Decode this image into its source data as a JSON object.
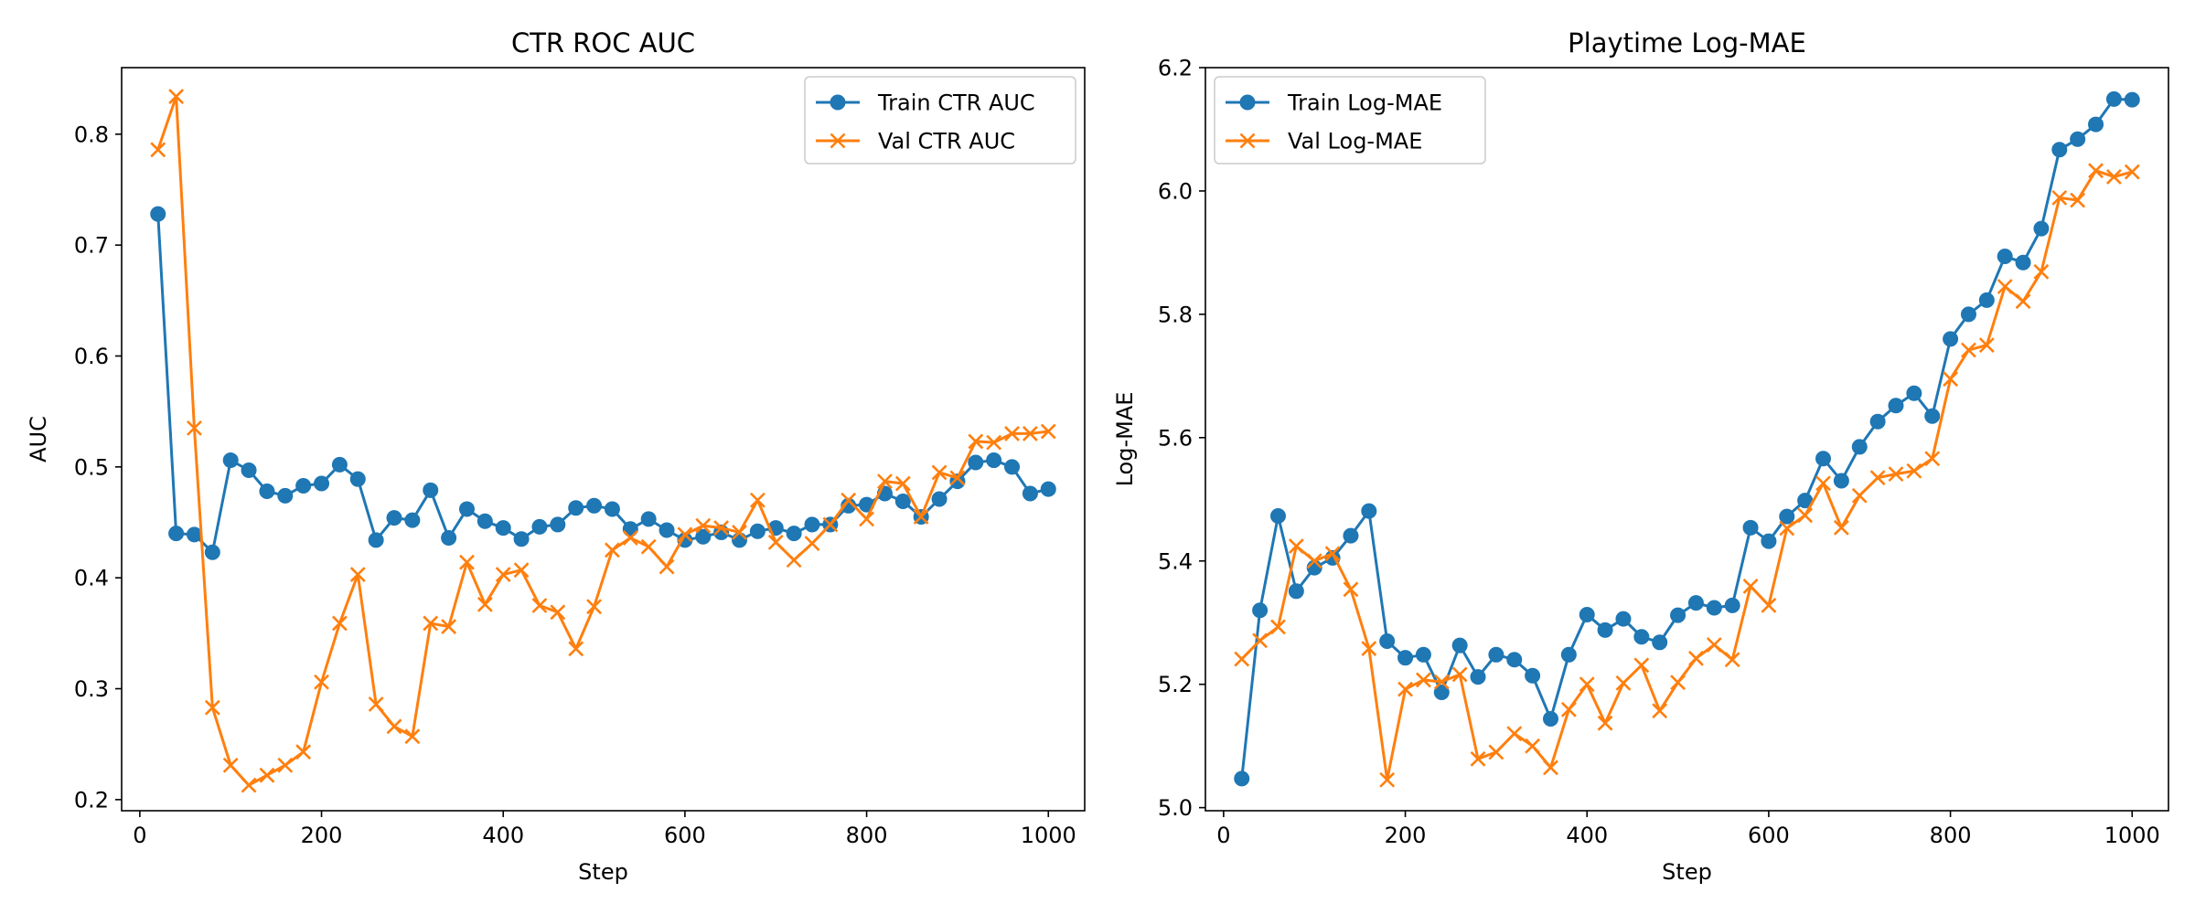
{
  "chart_data": [
    {
      "type": "line",
      "title": "CTR ROC AUC",
      "xlabel": "Step",
      "ylabel": "AUC",
      "xlim": [
        -20,
        1040
      ],
      "ylim": [
        0.19,
        0.86
      ],
      "xticks": [
        0,
        200,
        400,
        600,
        800,
        1000
      ],
      "yticks": [
        0.2,
        0.3,
        0.4,
        0.5,
        0.6,
        0.7,
        0.8
      ],
      "ytick_decimals": 1,
      "legend_position": "upper right",
      "grid": false,
      "x": [
        20,
        40,
        60,
        80,
        100,
        120,
        140,
        160,
        180,
        200,
        220,
        240,
        260,
        280,
        300,
        320,
        340,
        360,
        380,
        400,
        420,
        440,
        460,
        480,
        500,
        520,
        540,
        560,
        580,
        600,
        620,
        640,
        660,
        680,
        700,
        720,
        740,
        760,
        780,
        800,
        820,
        840,
        860,
        880,
        900,
        920,
        940,
        960,
        980,
        1000
      ],
      "series": [
        {
          "name": "Train CTR AUC",
          "color": "#1f77b4",
          "marker": "circle",
          "values": [
            0.728,
            0.44,
            0.439,
            0.423,
            0.506,
            0.497,
            0.478,
            0.474,
            0.483,
            0.485,
            0.502,
            0.489,
            0.434,
            0.454,
            0.452,
            0.479,
            0.436,
            0.462,
            0.451,
            0.445,
            0.435,
            0.446,
            0.448,
            0.463,
            0.465,
            0.462,
            0.444,
            0.453,
            0.443,
            0.434,
            0.437,
            0.441,
            0.434,
            0.442,
            0.445,
            0.44,
            0.448,
            0.448,
            0.465,
            0.466,
            0.476,
            0.469,
            0.455,
            0.471,
            0.487,
            0.504,
            0.506,
            0.5,
            0.476,
            0.48
          ]
        },
        {
          "name": "Val CTR AUC",
          "color": "#ff7f0e",
          "marker": "x",
          "values": [
            0.786,
            0.834,
            0.535,
            0.283,
            0.231,
            0.213,
            0.222,
            0.231,
            0.243,
            0.306,
            0.359,
            0.403,
            0.286,
            0.266,
            0.257,
            0.359,
            0.356,
            0.414,
            0.376,
            0.403,
            0.407,
            0.375,
            0.369,
            0.336,
            0.374,
            0.425,
            0.436,
            0.428,
            0.41,
            0.439,
            0.447,
            0.445,
            0.441,
            0.47,
            0.432,
            0.416,
            0.431,
            0.448,
            0.47,
            0.453,
            0.487,
            0.485,
            0.455,
            0.495,
            0.49,
            0.523,
            0.522,
            0.53,
            0.53,
            0.532
          ]
        }
      ]
    },
    {
      "type": "line",
      "title": "Playtime Log-MAE",
      "xlabel": "Step",
      "ylabel": "Log-MAE",
      "xlim": [
        -20,
        1040
      ],
      "ylim": [
        4.995,
        6.2
      ],
      "xticks": [
        0,
        200,
        400,
        600,
        800,
        1000
      ],
      "yticks": [
        5.0,
        5.2,
        5.4,
        5.6,
        5.8,
        6.0,
        6.2
      ],
      "ytick_decimals": 1,
      "legend_position": "upper left",
      "grid": false,
      "x": [
        20,
        40,
        60,
        80,
        100,
        120,
        140,
        160,
        180,
        200,
        220,
        240,
        260,
        280,
        300,
        320,
        340,
        360,
        380,
        400,
        420,
        440,
        460,
        480,
        500,
        520,
        540,
        560,
        580,
        600,
        620,
        640,
        660,
        680,
        700,
        720,
        740,
        760,
        780,
        800,
        820,
        840,
        860,
        880,
        900,
        920,
        940,
        960,
        980,
        1000
      ],
      "series": [
        {
          "name": "Train Log-MAE",
          "color": "#1f77b4",
          "marker": "circle",
          "values": [
            5.047,
            5.32,
            5.473,
            5.351,
            5.389,
            5.405,
            5.441,
            5.481,
            5.27,
            5.243,
            5.248,
            5.187,
            5.263,
            5.212,
            5.248,
            5.24,
            5.214,
            5.144,
            5.248,
            5.313,
            5.288,
            5.306,
            5.277,
            5.268,
            5.312,
            5.332,
            5.324,
            5.328,
            5.454,
            5.432,
            5.472,
            5.498,
            5.566,
            5.53,
            5.585,
            5.626,
            5.652,
            5.672,
            5.635,
            5.76,
            5.8,
            5.823,
            5.894,
            5.884,
            5.939,
            6.067,
            6.084,
            6.108,
            6.149,
            6.148
          ]
        },
        {
          "name": "Val Log-MAE",
          "color": "#ff7f0e",
          "marker": "x",
          "values": [
            5.241,
            5.271,
            5.293,
            5.424,
            5.4,
            5.412,
            5.354,
            5.258,
            5.045,
            5.192,
            5.207,
            5.204,
            5.216,
            5.079,
            5.09,
            5.12,
            5.1,
            5.065,
            5.159,
            5.2,
            5.137,
            5.202,
            5.231,
            5.157,
            5.203,
            5.242,
            5.264,
            5.24,
            5.359,
            5.328,
            5.453,
            5.474,
            5.526,
            5.454,
            5.506,
            5.535,
            5.541,
            5.546,
            5.566,
            5.695,
            5.742,
            5.75,
            5.845,
            5.821,
            5.869,
            5.989,
            5.985,
            6.033,
            6.023,
            6.031
          ]
        }
      ]
    }
  ]
}
